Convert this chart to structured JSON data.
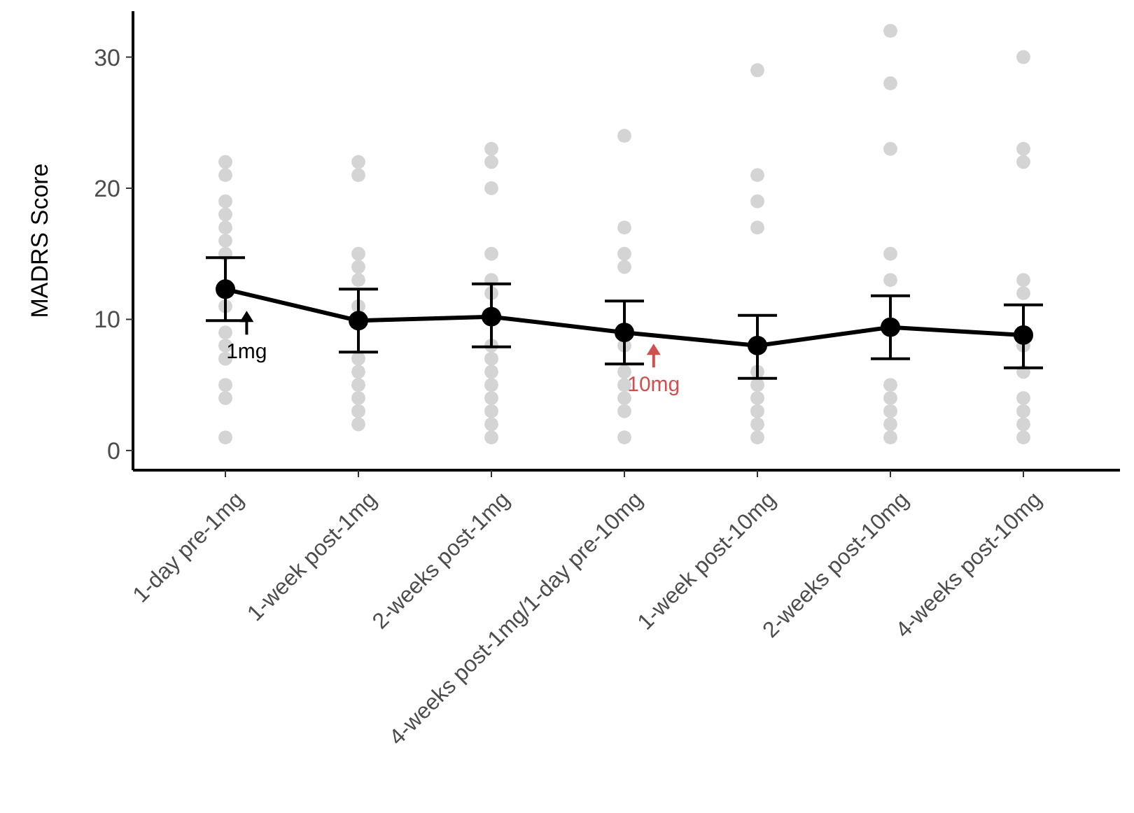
{
  "chart_data": {
    "type": "line",
    "ylabel": "MADRS Score",
    "categories": [
      "1-day pre-1mg",
      "1-week post-1mg",
      "2-weeks post-1mg",
      "4-weeks post-1mg/1-day pre-10mg",
      "1-week post-10mg",
      "2-weeks post-10mg",
      "4-weeks post-10mg"
    ],
    "ylim": [
      -1.5,
      33.5
    ],
    "yticks": [
      0,
      10,
      20,
      30
    ],
    "grid": false,
    "marker": "circle",
    "line_style": "solid",
    "series": [
      {
        "type": "scatter",
        "color": "#d4d4d4",
        "x": [
          "1-day pre-1mg",
          "1-day pre-1mg",
          "1-day pre-1mg",
          "1-day pre-1mg",
          "1-day pre-1mg",
          "1-day pre-1mg",
          "1-day pre-1mg",
          "1-day pre-1mg",
          "1-day pre-1mg",
          "1-day pre-1mg",
          "1-day pre-1mg",
          "1-day pre-1mg",
          "1-day pre-1mg",
          "1-day pre-1mg",
          "1-week post-1mg",
          "1-week post-1mg",
          "1-week post-1mg",
          "1-week post-1mg",
          "1-week post-1mg",
          "1-week post-1mg",
          "1-week post-1mg",
          "1-week post-1mg",
          "1-week post-1mg",
          "1-week post-1mg",
          "1-week post-1mg",
          "1-week post-1mg",
          "2-weeks post-1mg",
          "2-weeks post-1mg",
          "2-weeks post-1mg",
          "2-weeks post-1mg",
          "2-weeks post-1mg",
          "2-weeks post-1mg",
          "2-weeks post-1mg",
          "2-weeks post-1mg",
          "2-weeks post-1mg",
          "2-weeks post-1mg",
          "2-weeks post-1mg",
          "2-weeks post-1mg",
          "2-weeks post-1mg",
          "2-weeks post-1mg",
          "4-weeks post-1mg/1-day pre-10mg",
          "4-weeks post-1mg/1-day pre-10mg",
          "4-weeks post-1mg/1-day pre-10mg",
          "4-weeks post-1mg/1-day pre-10mg",
          "4-weeks post-1mg/1-day pre-10mg",
          "4-weeks post-1mg/1-day pre-10mg",
          "4-weeks post-1mg/1-day pre-10mg",
          "4-weeks post-1mg/1-day pre-10mg",
          "4-weeks post-1mg/1-day pre-10mg",
          "4-weeks post-1mg/1-day pre-10mg",
          "1-week post-10mg",
          "1-week post-10mg",
          "1-week post-10mg",
          "1-week post-10mg",
          "1-week post-10mg",
          "1-week post-10mg",
          "1-week post-10mg",
          "1-week post-10mg",
          "1-week post-10mg",
          "1-week post-10mg",
          "2-weeks post-10mg",
          "2-weeks post-10mg",
          "2-weeks post-10mg",
          "2-weeks post-10mg",
          "2-weeks post-10mg",
          "2-weeks post-10mg",
          "2-weeks post-10mg",
          "2-weeks post-10mg",
          "2-weeks post-10mg",
          "2-weeks post-10mg",
          "4-weeks post-10mg",
          "4-weeks post-10mg",
          "4-weeks post-10mg",
          "4-weeks post-10mg",
          "4-weeks post-10mg",
          "4-weeks post-10mg",
          "4-weeks post-10mg",
          "4-weeks post-10mg",
          "4-weeks post-10mg",
          "4-weeks post-10mg",
          "4-weeks post-10mg"
        ],
        "values": [
          22,
          21,
          19,
          18,
          17,
          16,
          15,
          11,
          9,
          8,
          7,
          5,
          4,
          1,
          22,
          21,
          15,
          14,
          13,
          11,
          7,
          6,
          5,
          4,
          3,
          2,
          23,
          22,
          20,
          15,
          13,
          12,
          8,
          7,
          6,
          5,
          4,
          3,
          2,
          1,
          24,
          17,
          15,
          14,
          8,
          6,
          5,
          4,
          3,
          1,
          29,
          21,
          19,
          17,
          6,
          5,
          4,
          3,
          2,
          1,
          32,
          28,
          23,
          15,
          13,
          5,
          4,
          3,
          2,
          1,
          30,
          23,
          22,
          13,
          12,
          8,
          6,
          4,
          3,
          2,
          1
        ]
      },
      {
        "color": "#000000",
        "values": [
          12.3,
          9.9,
          10.2,
          9.0,
          8.0,
          9.4,
          8.8
        ],
        "errors": [
          [
            9.9,
            14.7
          ],
          [
            7.5,
            12.3
          ],
          [
            7.9,
            12.7
          ],
          [
            6.6,
            11.4
          ],
          [
            5.5,
            10.3
          ],
          [
            7.0,
            11.8
          ],
          [
            6.3,
            11.1
          ]
        ]
      }
    ],
    "annotations": [
      "1mg",
      "10mg"
    ]
  }
}
